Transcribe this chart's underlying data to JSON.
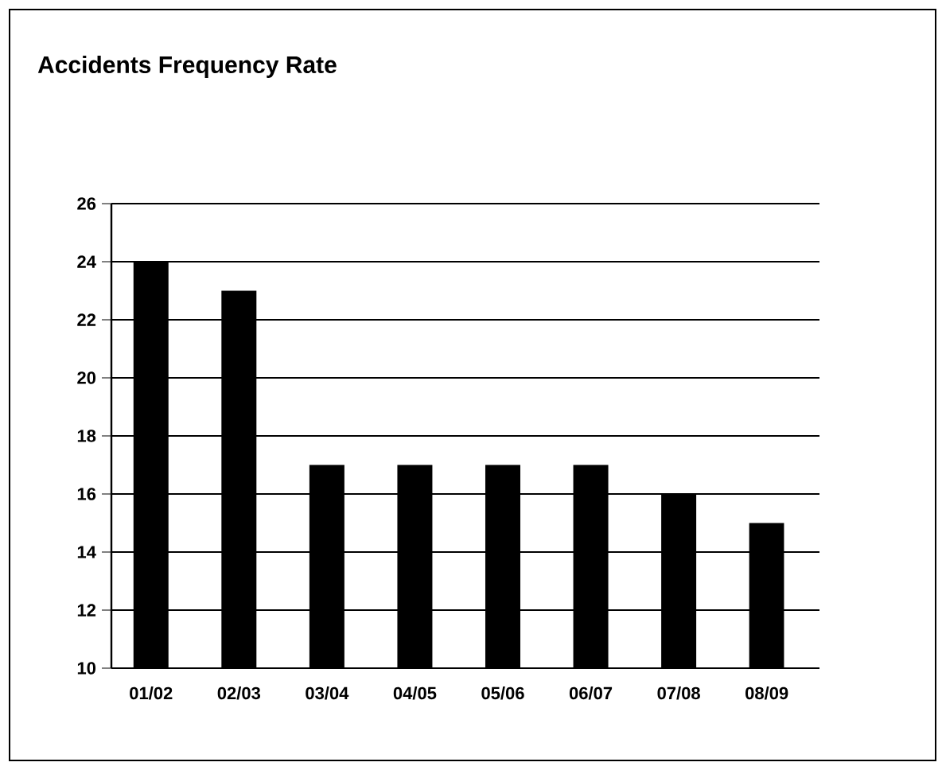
{
  "chart_data": {
    "type": "bar",
    "title": "Accidents Frequency Rate",
    "categories": [
      "01/02",
      "02/03",
      "03/04",
      "04/05",
      "05/06",
      "06/07",
      "07/08",
      "08/09"
    ],
    "values": [
      24,
      23,
      17,
      17,
      17,
      17,
      16,
      15
    ],
    "color": "#000000",
    "ylim": [
      10,
      26
    ],
    "yticks": [
      10,
      12,
      14,
      16,
      18,
      20,
      22,
      24,
      26
    ],
    "grid": "y"
  }
}
